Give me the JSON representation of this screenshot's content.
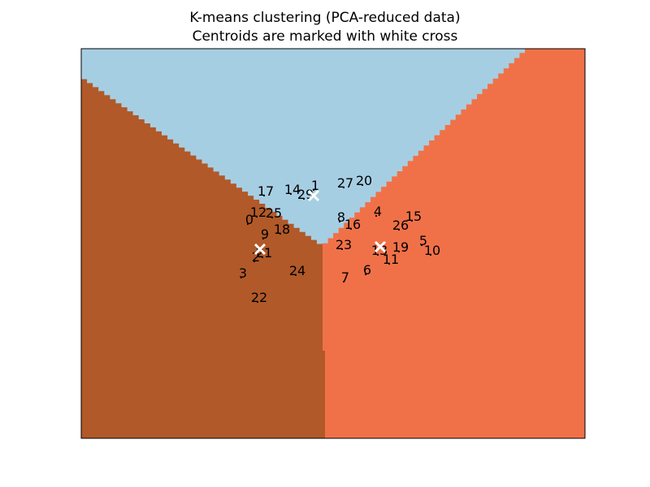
{
  "chart_data": {
    "type": "scatter",
    "title": "K-means clustering (PCA-reduced data)",
    "subtitle": "Centroids are marked with white cross",
    "xlabel": "",
    "ylabel": "",
    "grid": false,
    "axes_ticks": false,
    "regions": [
      {
        "cluster": "top",
        "color": "#a6cee3"
      },
      {
        "cluster": "left",
        "color": "#b15928"
      },
      {
        "cluster": "right",
        "color": "#f07148"
      }
    ],
    "points": [
      {
        "label": "0",
        "x": 307,
        "y": 270
      },
      {
        "label": "1",
        "x": 388,
        "y": 228
      },
      {
        "label": "2",
        "x": 315,
        "y": 316
      },
      {
        "label": "3",
        "x": 299,
        "y": 336
      },
      {
        "label": "4",
        "x": 465,
        "y": 260
      },
      {
        "label": "5",
        "x": 521,
        "y": 296
      },
      {
        "label": "6",
        "x": 452,
        "y": 332
      },
      {
        "label": "7",
        "x": 425,
        "y": 341
      },
      {
        "label": "8",
        "x": 420,
        "y": 267
      },
      {
        "label": "9",
        "x": 326,
        "y": 288
      },
      {
        "label": "10",
        "x": 532,
        "y": 308
      },
      {
        "label": "11",
        "x": 481,
        "y": 319
      },
      {
        "label": "12",
        "x": 318,
        "y": 261
      },
      {
        "label": "13",
        "x": 467,
        "y": 308
      },
      {
        "label": "14",
        "x": 360,
        "y": 233
      },
      {
        "label": "15",
        "x": 509,
        "y": 266
      },
      {
        "label": "16",
        "x": 434,
        "y": 276
      },
      {
        "label": "17",
        "x": 327,
        "y": 235
      },
      {
        "label": "18",
        "x": 347,
        "y": 282
      },
      {
        "label": "19",
        "x": 493,
        "y": 304
      },
      {
        "label": "20",
        "x": 448,
        "y": 222
      },
      {
        "label": "21",
        "x": 325,
        "y": 311
      },
      {
        "label": "22",
        "x": 319,
        "y": 366
      },
      {
        "label": "23",
        "x": 423,
        "y": 301
      },
      {
        "label": "24",
        "x": 366,
        "y": 333
      },
      {
        "label": "25",
        "x": 337,
        "y": 262
      },
      {
        "label": "26",
        "x": 493,
        "y": 277
      },
      {
        "label": "27",
        "x": 425,
        "y": 225
      },
      {
        "label": "29",
        "x": 376,
        "y": 239
      }
    ],
    "centroids": [
      {
        "x": 386,
        "y": 241
      },
      {
        "x": 320,
        "y": 307
      },
      {
        "x": 468,
        "y": 304
      }
    ],
    "x_range": [
      100,
      720
    ],
    "y_range": [
      60,
      540
    ]
  }
}
